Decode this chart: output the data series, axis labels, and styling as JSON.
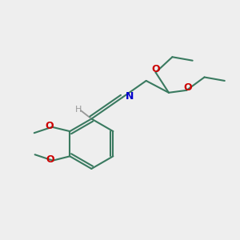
{
  "bg_color": "#eeeeee",
  "bond_color": "#3a7a60",
  "o_color": "#cc0000",
  "n_color": "#0000cc",
  "h_color": "#999999",
  "line_width": 1.5,
  "figsize": [
    3.0,
    3.0
  ],
  "dpi": 100,
  "xlim": [
    0,
    10
  ],
  "ylim": [
    0,
    10
  ]
}
